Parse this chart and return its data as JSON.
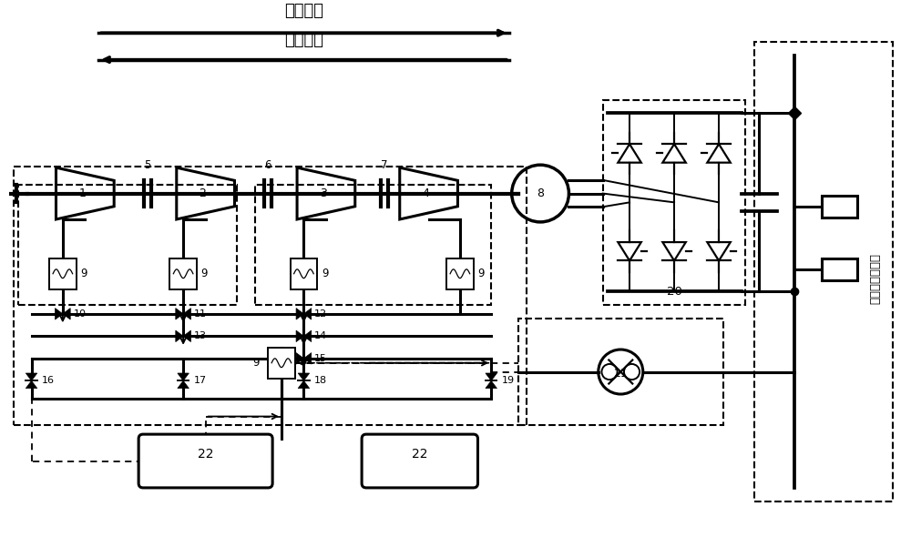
{
  "bg_color": "#ffffff",
  "text_expand": "膨胀释能",
  "text_compress": "压缩储能",
  "text_cold": "冷热电联产系统",
  "lw_main": 2.2,
  "lw_thick": 3.0,
  "lw_thin": 1.4,
  "lw_dash": 1.3
}
